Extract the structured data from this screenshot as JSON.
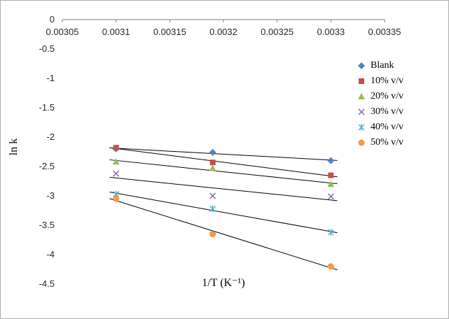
{
  "chart_data": {
    "type": "scatter",
    "title": "",
    "xlabel": "1/T (K⁻¹)",
    "ylabel": "ln k",
    "xlim": [
      0.00305,
      0.00335
    ],
    "ylim": [
      -4.5,
      0
    ],
    "grid": false,
    "legend_position": "right",
    "trendlines": true,
    "axis_color": "#7f7f7f",
    "trendline_color": "#000000",
    "x_ticks": [
      "0.00305",
      "0.0031",
      "0.00315",
      "0.0032",
      "0.00325",
      "0.0033",
      "0.00335"
    ],
    "y_ticks": [
      "0",
      "-0.5",
      "-1",
      "-1.5",
      "-2",
      "-2.5",
      "-3",
      "-3.5",
      "-4",
      "-4.5"
    ],
    "x": [
      0.0031,
      0.00319,
      0.0033
    ],
    "series": [
      {
        "name": "Blank",
        "marker": "diamond",
        "color": "#4F81BD",
        "values": [
          -2.2,
          -2.26,
          -2.4
        ]
      },
      {
        "name": "10% v/v",
        "marker": "square",
        "color": "#C0504D",
        "values": [
          -2.18,
          -2.43,
          -2.65
        ]
      },
      {
        "name": "20% v/v",
        "marker": "triangle",
        "color": "#9BBB59",
        "values": [
          -2.42,
          -2.53,
          -2.8
        ]
      },
      {
        "name": "30% v/v",
        "marker": "x",
        "color": "#8064A2",
        "values": [
          -2.62,
          -3.0,
          -3.01
        ]
      },
      {
        "name": "40% v/v",
        "marker": "asterisk",
        "color": "#4BACC6",
        "values": [
          -2.97,
          -3.22,
          -3.62
        ]
      },
      {
        "name": "50% v/v",
        "marker": "circle",
        "color": "#F79646",
        "values": [
          -3.05,
          -3.65,
          -4.2
        ]
      }
    ]
  }
}
